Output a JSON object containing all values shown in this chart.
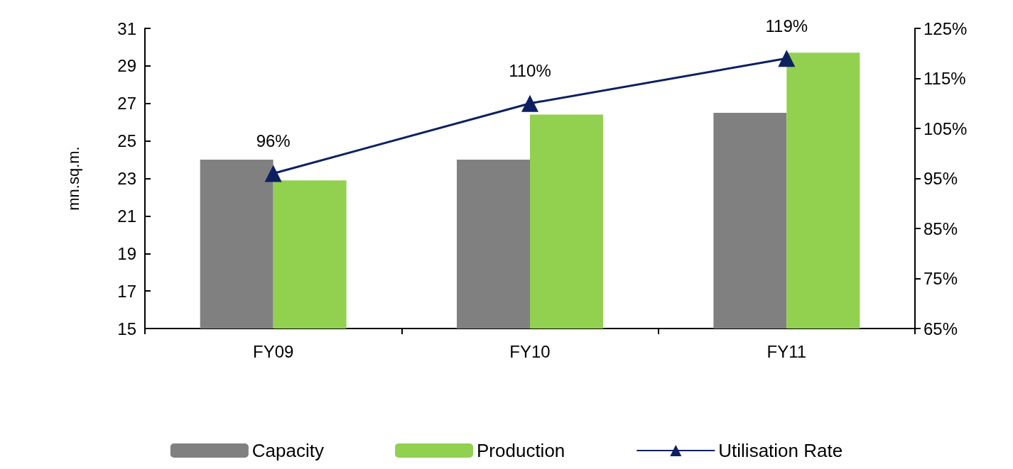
{
  "chart_data": {
    "type": "bar",
    "ylabel": "mn.sq.m.",
    "categories": [
      "FY09",
      "FY10",
      "FY11"
    ],
    "series": [
      {
        "name": "Capacity",
        "color": "#808080",
        "values": [
          24.0,
          24.0,
          26.5
        ]
      },
      {
        "name": "Production",
        "color": "#92d050",
        "values": [
          22.9,
          26.4,
          29.7
        ]
      },
      {
        "name": "Utilisation Rate",
        "type": "line",
        "axis": "y2",
        "color": "#0d2060",
        "marker": "triangle",
        "values": [
          96,
          110,
          119
        ],
        "value_labels": [
          "96%",
          "110%",
          "119%"
        ]
      }
    ],
    "ylim": [
      15,
      31
    ],
    "yticks": [
      15,
      17,
      19,
      21,
      23,
      25,
      27,
      29,
      31
    ],
    "y2lim": [
      65,
      125
    ],
    "y2ticks": [
      {
        "value": 65,
        "label": "65%"
      },
      {
        "value": 75,
        "label": "75%"
      },
      {
        "value": 85,
        "label": "85%"
      },
      {
        "value": 95,
        "label": "95%"
      },
      {
        "value": 105,
        "label": "105%"
      },
      {
        "value": 115,
        "label": "115%"
      },
      {
        "value": 125,
        "label": "125%"
      }
    ],
    "grid": false,
    "legend": "bottom"
  }
}
